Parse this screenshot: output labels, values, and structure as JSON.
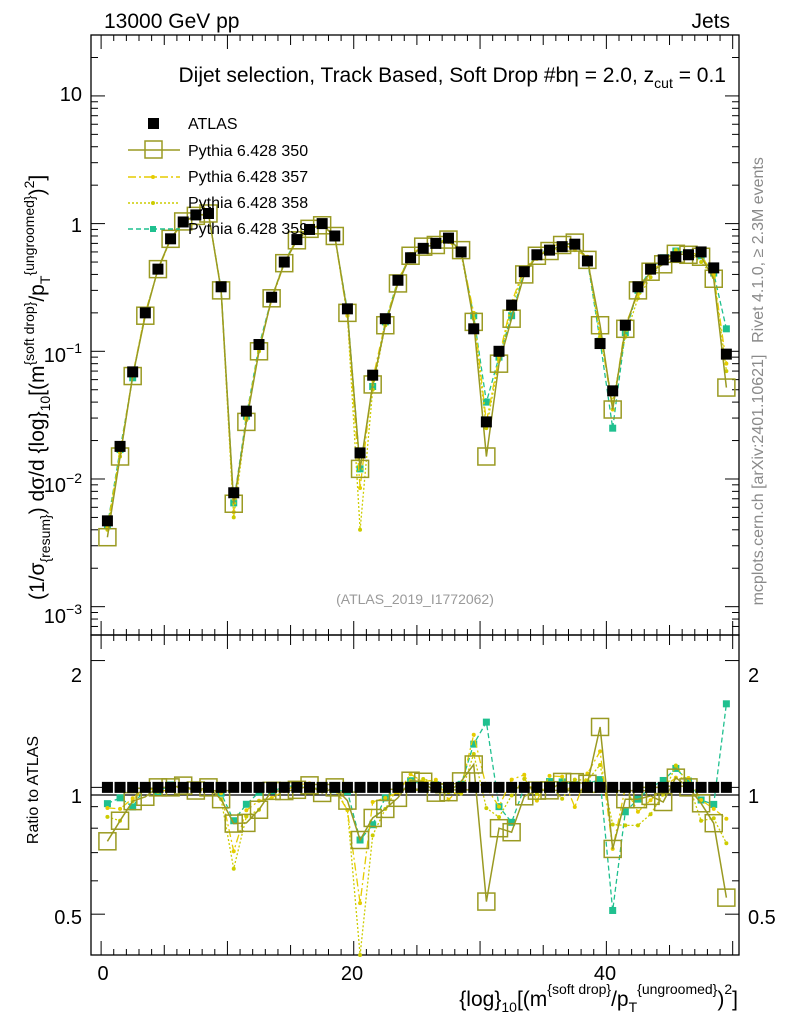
{
  "header": {
    "energy": "13000 GeV pp",
    "category": "Jets"
  },
  "side_labels": {
    "rivet": "Rivet 4.1.0, ≥ 2.3M events",
    "mcplots": "mcplots.cern.ch [arXiv:2401.10621]"
  },
  "main_title": "Dijet selection, Track Based, Soft Drop #bη = 2.0, z",
  "main_title_sub": "cut",
  "main_title_end": " = 0.1",
  "analysis_id": "(ATLAS_2019_I1772062)",
  "axes": {
    "ylabel": "(1/σ{resum}) dσ/d {log}10[(m^{soft drop}/pT^{ungroomed})^2]",
    "ratio_ylabel": "Ratio to ATLAS",
    "xlabel": "{log}10[(m^{soft drop}/pT^{ungroomed})^2]",
    "x_ticks": [
      "0",
      "20",
      "40"
    ],
    "y_ticks": [
      "10",
      "1",
      "10^-1",
      "10^-2",
      "10^-3"
    ],
    "ratio_ticks": [
      "2",
      "1",
      "0.5"
    ]
  },
  "legend": [
    {
      "label": "ATLAS",
      "color": "#000000",
      "style": "marker-square-filled"
    },
    {
      "label": "Pythia 6.428 350",
      "color": "#9a9a22",
      "style": "solid-open-square"
    },
    {
      "label": "Pythia 6.428 357",
      "color": "#e5cc00",
      "style": "dashdot"
    },
    {
      "label": "Pythia 6.428 358",
      "color": "#cccc00",
      "style": "dotted"
    },
    {
      "label": "Pythia 6.428 359",
      "color": "#1fc08f",
      "style": "dashed-filled-square"
    }
  ],
  "chart_data": {
    "type": "line",
    "title": "Dijet selection, Track Based, Soft Drop #bη = 2.0, z_cut = 0.1",
    "xlabel": "{log}10[(m^{soft drop}/pT^{ungroomed})^2]",
    "ylabel": "(1/σ{resum}) dσ/d {log}10[(m^{soft drop}/pT^{ungroomed})^2]",
    "xlim": [
      -0.8,
      50.5
    ],
    "ylim": [
      0.0006,
      30
    ],
    "yscale": "log",
    "ratio_ylim": [
      0.4,
      2.3
    ],
    "x": [
      0.5,
      1.5,
      2.5,
      3.5,
      4.5,
      5.5,
      6.5,
      7.5,
      8.5,
      9.5,
      10.5,
      11.5,
      12.5,
      13.5,
      14.5,
      15.5,
      16.5,
      17.5,
      18.5,
      19.5,
      20.5,
      21.5,
      22.5,
      23.5,
      24.5,
      25.5,
      26.5,
      27.5,
      28.5,
      29.5,
      30.5,
      31.5,
      32.5,
      33.5,
      34.5,
      35.5,
      36.5,
      37.5,
      38.5,
      39.5,
      40.5,
      41.5,
      42.5,
      43.5,
      44.5,
      45.5,
      46.5,
      47.5,
      48.5,
      49.5
    ],
    "series": [
      {
        "name": "ATLAS",
        "values": [
          0.0047,
          0.018,
          0.069,
          0.2,
          0.44,
          0.76,
          1.03,
          1.17,
          1.2,
          0.32,
          0.0078,
          0.034,
          0.113,
          0.265,
          0.5,
          0.75,
          0.9,
          1.0,
          0.8,
          0.215,
          0.016,
          0.065,
          0.18,
          0.36,
          0.54,
          0.64,
          0.7,
          0.77,
          0.6,
          0.15,
          0.028,
          0.1,
          0.23,
          0.42,
          0.57,
          0.62,
          0.66,
          0.69,
          0.51,
          0.115,
          0.049,
          0.16,
          0.32,
          0.44,
          0.52,
          0.55,
          0.57,
          0.6,
          0.45,
          0.095
        ]
      },
      {
        "name": "Pythia 6.428 350",
        "values": [
          0.0035,
          0.015,
          0.064,
          0.19,
          0.44,
          0.76,
          1.04,
          1.15,
          1.2,
          0.3,
          0.0064,
          0.028,
          0.1,
          0.26,
          0.49,
          0.74,
          0.91,
          0.97,
          0.8,
          0.2,
          0.012,
          0.055,
          0.16,
          0.34,
          0.56,
          0.66,
          0.68,
          0.75,
          0.62,
          0.17,
          0.015,
          0.08,
          0.18,
          0.4,
          0.56,
          0.61,
          0.68,
          0.71,
          0.52,
          0.16,
          0.035,
          0.15,
          0.3,
          0.42,
          0.48,
          0.58,
          0.57,
          0.55,
          0.37,
          0.052
        ]
      },
      {
        "name": "Pythia 6.428 357",
        "values": [
          0.0042,
          0.016,
          0.065,
          0.2,
          0.43,
          0.75,
          1.02,
          1.16,
          1.19,
          0.31,
          0.0055,
          0.03,
          0.105,
          0.25,
          0.49,
          0.76,
          0.92,
          0.98,
          0.79,
          0.19,
          0.0085,
          0.06,
          0.17,
          0.35,
          0.58,
          0.66,
          0.73,
          0.72,
          0.6,
          0.2,
          0.028,
          0.09,
          0.24,
          0.45,
          0.53,
          0.66,
          0.7,
          0.62,
          0.55,
          0.14,
          0.035,
          0.16,
          0.28,
          0.41,
          0.52,
          0.58,
          0.6,
          0.56,
          0.4,
          0.08
        ]
      },
      {
        "name": "Pythia 6.428 358",
        "values": [
          0.004,
          0.015,
          0.064,
          0.2,
          0.43,
          0.76,
          1.03,
          1.15,
          1.18,
          0.3,
          0.005,
          0.029,
          0.1,
          0.26,
          0.5,
          0.75,
          0.9,
          0.99,
          0.8,
          0.19,
          0.004,
          0.05,
          0.16,
          0.36,
          0.56,
          0.67,
          0.72,
          0.75,
          0.58,
          0.18,
          0.025,
          0.085,
          0.22,
          0.44,
          0.55,
          0.63,
          0.62,
          0.72,
          0.53,
          0.13,
          0.04,
          0.13,
          0.26,
          0.38,
          0.5,
          0.62,
          0.58,
          0.5,
          0.38,
          0.07
        ]
      },
      {
        "name": "Pythia 6.428 359",
        "values": [
          0.0043,
          0.017,
          0.062,
          0.2,
          0.43,
          0.77,
          1.03,
          1.16,
          1.19,
          0.31,
          0.0065,
          0.031,
          0.11,
          0.26,
          0.5,
          0.76,
          0.9,
          0.99,
          0.79,
          0.21,
          0.012,
          0.053,
          0.17,
          0.36,
          0.56,
          0.65,
          0.71,
          0.76,
          0.61,
          0.19,
          0.04,
          0.09,
          0.19,
          0.42,
          0.57,
          0.64,
          0.68,
          0.7,
          0.52,
          0.12,
          0.025,
          0.14,
          0.3,
          0.44,
          0.54,
          0.61,
          0.59,
          0.56,
          0.41,
          0.15
        ]
      }
    ]
  }
}
